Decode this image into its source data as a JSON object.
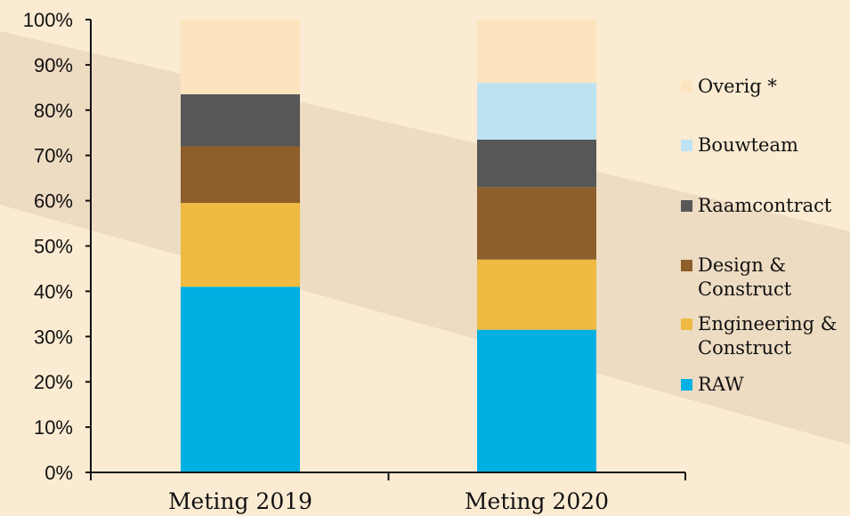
{
  "chart_data": {
    "type": "bar",
    "stacked": true,
    "categories": [
      "Meting 2019",
      "Meting 2020"
    ],
    "yticks": [
      "0%",
      "10%",
      "20%",
      "30%",
      "40%",
      "50%",
      "60%",
      "70%",
      "80%",
      "90%",
      "100%"
    ],
    "ylim": [
      0,
      100
    ],
    "series": [
      {
        "name": "RAW",
        "color": "#00b0e3",
        "values": [
          41,
          31.5
        ]
      },
      {
        "name": "Engineering & Construct",
        "color": "#eeba42",
        "values": [
          18.5,
          15.5
        ]
      },
      {
        "name": "Design & Construct",
        "color": "#8e5f2a",
        "values": [
          12.5,
          16
        ]
      },
      {
        "name": "Raamcontract",
        "color": "#575757",
        "values": [
          11.5,
          10.5
        ]
      },
      {
        "name": "Bouwteam",
        "color": "#bde3f3",
        "values": [
          0,
          12.5
        ]
      },
      {
        "name": "Overig *",
        "color": "#fce4bf",
        "values": [
          16.5,
          14
        ]
      }
    ],
    "legend": [
      {
        "lines": [
          "Overig *"
        ],
        "color": "#fce4bf"
      },
      {
        "lines": [
          "Bouwteam"
        ],
        "color": "#bde3f3"
      },
      {
        "lines": [
          "Raamcontract"
        ],
        "color": "#575757"
      },
      {
        "lines": [
          "Design &",
          "Construct"
        ],
        "color": "#8e5f2a"
      },
      {
        "lines": [
          "Engineering &",
          "Construct"
        ],
        "color": "#eeba42"
      },
      {
        "lines": [
          "RAW"
        ],
        "color": "#00b0e3"
      }
    ],
    "legend_position": "right",
    "grid": false,
    "background": "#faebd2",
    "decoration_band_color": "#e8d5bc"
  }
}
